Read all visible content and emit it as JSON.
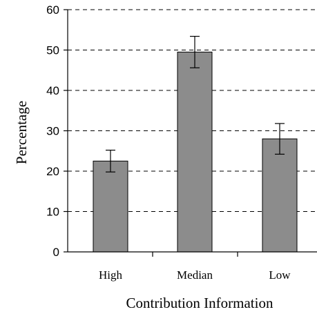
{
  "chart_data": {
    "type": "bar",
    "categories": [
      "High",
      "Median",
      "Low"
    ],
    "values": [
      22.5,
      49.5,
      28
    ],
    "error_bars": [
      {
        "low": 19.8,
        "high": 25.2
      },
      {
        "low": 45.6,
        "high": 53.4
      },
      {
        "low": 24.2,
        "high": 31.8
      }
    ],
    "xlabel": "Contribution Information",
    "ylabel": "Percentage",
    "ylim": [
      0,
      60
    ],
    "yticks": [
      0,
      10,
      20,
      30,
      40,
      50,
      60
    ],
    "grid": "dashed horizontal",
    "bar_color": "#8c8c8c"
  }
}
